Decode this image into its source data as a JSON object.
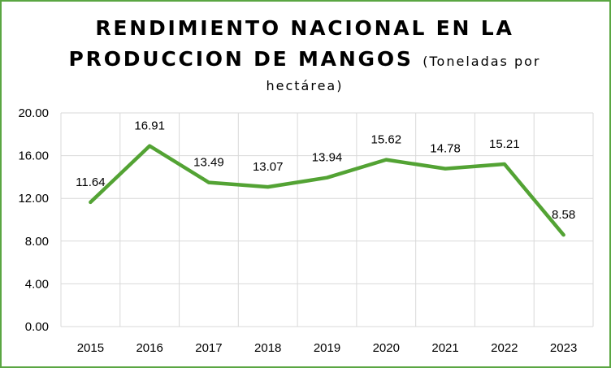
{
  "chart_data": {
    "type": "line",
    "title": {
      "line1": "RENDIMIENTO NACIONAL EN LA",
      "line2_main": "PRODUCCION DE MANGOS",
      "line2_sub": "(Toneladas por",
      "line3": "hectárea)"
    },
    "xlabel": "",
    "ylabel": "",
    "categories": [
      "2015",
      "2016",
      "2017",
      "2018",
      "2019",
      "2020",
      "2021",
      "2022",
      "2023"
    ],
    "series": [
      {
        "values": [
          11.64,
          16.91,
          13.49,
          13.07,
          13.94,
          15.62,
          14.78,
          15.21,
          8.58
        ],
        "labels": [
          "11.64",
          "16.91",
          "13.49",
          "13.07",
          "13.94",
          "15.62",
          "14.78",
          "15.21",
          "8.58"
        ],
        "color": "#53a334"
      }
    ],
    "y_ticks": [
      "0.00",
      "4.00",
      "8.00",
      "12.00",
      "16.00",
      "20.00"
    ],
    "ylim": [
      0,
      20
    ],
    "grid": true,
    "legend": "none"
  }
}
